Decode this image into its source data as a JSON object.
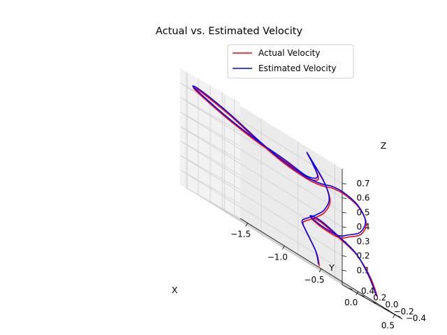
{
  "chart_data": {
    "type": "line",
    "projection": "3d",
    "title": "Actual vs. Estimated Velocity",
    "xlabel": "X",
    "ylabel": "Y",
    "zlabel": "Z",
    "xlim": [
      -1.6,
      0.6
    ],
    "ylim": [
      -0.5,
      0.5
    ],
    "zlim": [
      0.0,
      0.8
    ],
    "xticks": [
      -1.5,
      -1.0,
      -0.5,
      0.0,
      0.5
    ],
    "xtick_labels": [
      "−1.5",
      "−1.0",
      "−0.5",
      "0.0",
      "0.5"
    ],
    "yticks": [
      -0.4,
      -0.2,
      0.0,
      0.2,
      0.4
    ],
    "ytick_labels": [
      "−0.4",
      "−0.2",
      "0.0",
      "0.2",
      "0.4"
    ],
    "zticks": [
      0.1,
      0.2,
      0.3,
      0.4,
      0.5,
      0.6,
      0.7
    ],
    "ztick_labels": [
      "0.1",
      "0.2",
      "0.3",
      "0.4",
      "0.5",
      "0.6",
      "0.7"
    ],
    "grid": true,
    "legend_position": "top-right",
    "series": [
      {
        "name": "Actual Velocity",
        "color": "#ff0000",
        "points": [
          [
            0.3,
            -0.45,
            0.05
          ],
          [
            0.25,
            -0.4,
            0.15
          ],
          [
            0.15,
            -0.3,
            0.25
          ],
          [
            0.0,
            -0.15,
            0.3
          ],
          [
            -0.1,
            0.0,
            0.33
          ],
          [
            -0.15,
            0.1,
            0.32
          ],
          [
            -0.05,
            0.05,
            0.3
          ],
          [
            0.1,
            -0.05,
            0.3
          ],
          [
            0.25,
            -0.05,
            0.35
          ],
          [
            0.45,
            0.0,
            0.42
          ],
          [
            0.6,
            0.1,
            0.52
          ],
          [
            0.62,
            0.25,
            0.6
          ],
          [
            0.5,
            0.35,
            0.63
          ],
          [
            0.3,
            0.3,
            0.62
          ],
          [
            0.1,
            0.15,
            0.6
          ],
          [
            -0.1,
            0.05,
            0.58
          ],
          [
            -0.3,
            0.0,
            0.57
          ],
          [
            -0.6,
            0.0,
            0.58
          ],
          [
            -0.9,
            0.05,
            0.62
          ],
          [
            -1.2,
            0.15,
            0.68
          ],
          [
            -1.45,
            0.3,
            0.72
          ],
          [
            -1.5,
            0.4,
            0.72
          ],
          [
            -1.35,
            0.45,
            0.7
          ],
          [
            -1.05,
            0.45,
            0.66
          ],
          [
            -0.7,
            0.35,
            0.62
          ],
          [
            -0.4,
            0.2,
            0.6
          ],
          [
            -0.2,
            0.1,
            0.58
          ],
          [
            -0.05,
            0.1,
            0.62
          ],
          [
            0.0,
            0.25,
            0.7
          ],
          [
            0.05,
            0.4,
            0.75
          ],
          [
            0.15,
            0.45,
            0.72
          ],
          [
            0.2,
            0.3,
            0.62
          ],
          [
            0.15,
            0.15,
            0.52
          ],
          [
            0.0,
            0.05,
            0.42
          ],
          [
            -0.15,
            0.0,
            0.35
          ],
          [
            -0.25,
            0.0,
            0.3
          ],
          [
            -0.3,
            0.05,
            0.25
          ],
          [
            -0.25,
            0.05,
            0.2
          ],
          [
            -0.2,
            -0.05,
            0.1
          ],
          [
            -0.2,
            -0.1,
            0.02
          ]
        ]
      },
      {
        "name": "Estimated Velocity",
        "color": "#0000ff",
        "points": [
          [
            0.28,
            -0.46,
            0.05
          ],
          [
            0.22,
            -0.4,
            0.16
          ],
          [
            0.12,
            -0.31,
            0.26
          ],
          [
            -0.02,
            -0.16,
            0.31
          ],
          [
            -0.12,
            -0.01,
            0.34
          ],
          [
            -0.17,
            0.09,
            0.33
          ],
          [
            -0.07,
            0.05,
            0.31
          ],
          [
            0.08,
            -0.06,
            0.31
          ],
          [
            0.23,
            -0.06,
            0.36
          ],
          [
            0.43,
            -0.01,
            0.43
          ],
          [
            0.58,
            0.09,
            0.53
          ],
          [
            0.6,
            0.24,
            0.61
          ],
          [
            0.48,
            0.34,
            0.64
          ],
          [
            0.28,
            0.29,
            0.63
          ],
          [
            0.08,
            0.14,
            0.61
          ],
          [
            -0.12,
            0.04,
            0.59
          ],
          [
            -0.32,
            -0.01,
            0.58
          ],
          [
            -0.62,
            -0.01,
            0.59
          ],
          [
            -0.92,
            0.04,
            0.63
          ],
          [
            -1.22,
            0.14,
            0.69
          ],
          [
            -1.47,
            0.29,
            0.73
          ],
          [
            -1.52,
            0.39,
            0.73
          ],
          [
            -1.37,
            0.44,
            0.71
          ],
          [
            -1.07,
            0.44,
            0.67
          ],
          [
            -0.72,
            0.34,
            0.63
          ],
          [
            -0.42,
            0.19,
            0.61
          ],
          [
            -0.22,
            0.09,
            0.59
          ],
          [
            -0.07,
            0.09,
            0.63
          ],
          [
            -0.02,
            0.24,
            0.71
          ],
          [
            0.03,
            0.39,
            0.76
          ],
          [
            0.13,
            0.44,
            0.73
          ],
          [
            0.18,
            0.29,
            0.63
          ],
          [
            0.13,
            0.14,
            0.53
          ],
          [
            -0.02,
            0.04,
            0.43
          ],
          [
            -0.17,
            -0.01,
            0.36
          ],
          [
            -0.27,
            -0.01,
            0.31
          ],
          [
            -0.32,
            0.04,
            0.26
          ],
          [
            -0.27,
            0.04,
            0.21
          ],
          [
            -0.22,
            -0.06,
            0.11
          ],
          [
            -0.22,
            -0.11,
            0.03
          ]
        ]
      }
    ]
  }
}
